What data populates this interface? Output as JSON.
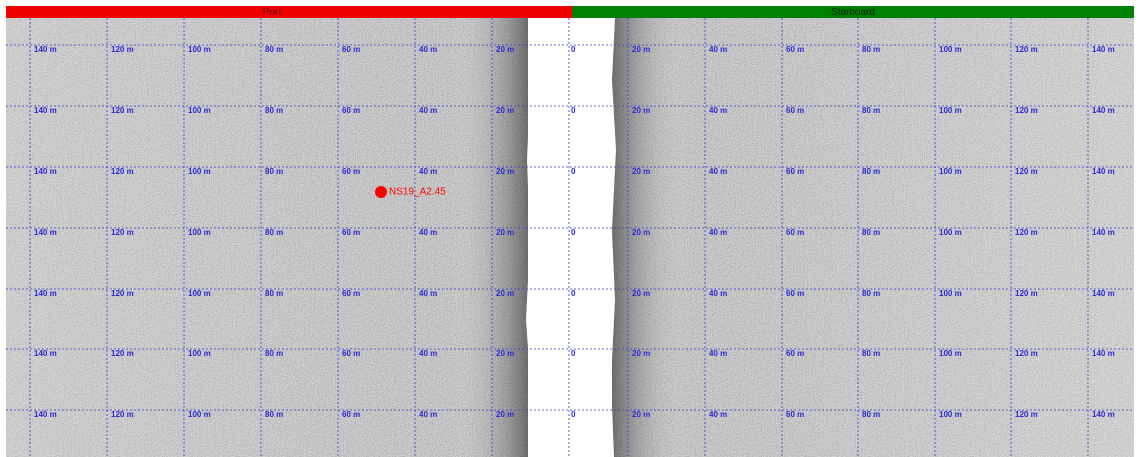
{
  "header": {
    "port": "Port",
    "starboard": "Starboard"
  },
  "grid": {
    "port_labels": [
      "140 m",
      "120 m",
      "100 m",
      "80 m",
      "60 m",
      "40 m",
      "20 m"
    ],
    "center_label": "0",
    "starboard_labels": [
      "20 m",
      "40 m",
      "60 m",
      "80 m",
      "100 m",
      "120 m",
      "140 m"
    ]
  },
  "target": {
    "label": "NS19_A2.45"
  }
}
